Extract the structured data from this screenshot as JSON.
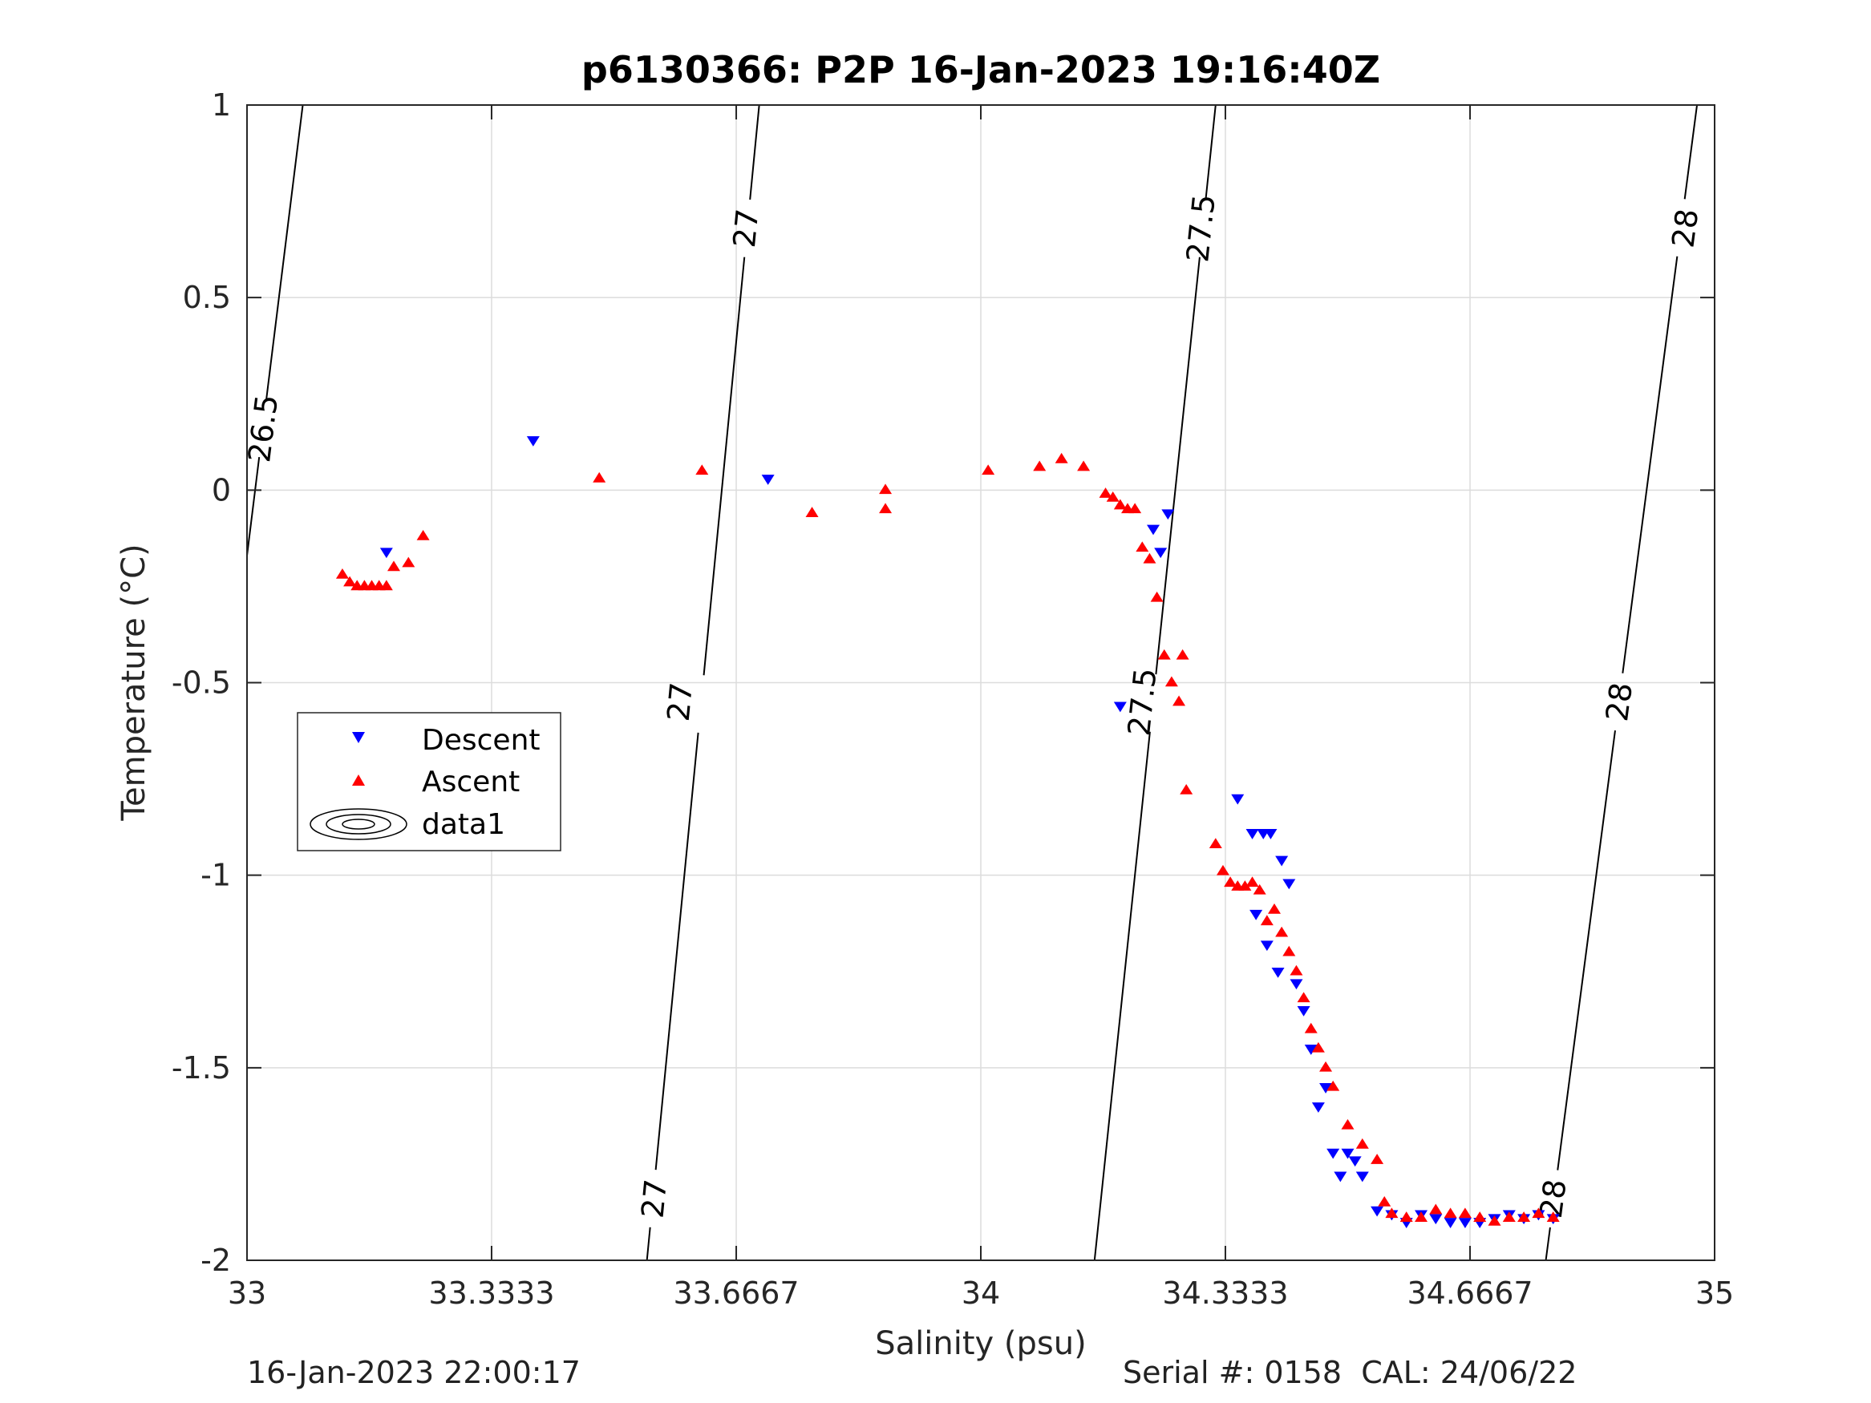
{
  "chart_data": {
    "type": "scatter",
    "title": "p6130366: P2P 16-Jan-2023 19:16:40Z",
    "xlabel": "Salinity (psu)",
    "ylabel": "Temperature (°C)",
    "xlim": [
      33,
      35
    ],
    "ylim": [
      -2,
      1
    ],
    "xticks": [
      33,
      33.3333,
      33.6667,
      34,
      34.3333,
      34.6667,
      35
    ],
    "xtick_labels": [
      "33",
      "33.3333",
      "33.6667",
      "34",
      "34.3333",
      "34.6667",
      "35"
    ],
    "yticks": [
      -2,
      -1.5,
      -1,
      -0.5,
      0,
      0.5,
      1
    ],
    "ytick_labels": [
      "-2",
      "-1.5",
      "-1",
      "-0.5",
      "0",
      "0.5",
      "1"
    ],
    "grid": true,
    "legend_position": "left-middle",
    "legend": [
      "Descent",
      "Ascent",
      "data1"
    ],
    "colors": {
      "descent": "#0000ff",
      "ascent": "#ff0000",
      "contour": "#000000"
    },
    "density_contours": [
      {
        "label": "26.5",
        "line": [
          [
            33.0,
            -0.17
          ],
          [
            33.076,
            1.0
          ]
        ],
        "label_positions": [
          [
            33.022,
            0.16
          ]
        ]
      },
      {
        "label": "27",
        "line": [
          [
            33.545,
            -2.0
          ],
          [
            33.698,
            1.0
          ]
        ],
        "label_positions": [
          [
            33.68,
            0.68
          ],
          [
            33.59,
            -0.55
          ],
          [
            33.555,
            -1.84
          ]
        ]
      },
      {
        "label": "27.5",
        "line": [
          [
            34.155,
            -2.0
          ],
          [
            34.32,
            1.0
          ]
        ],
        "label_positions": [
          [
            34.3,
            0.68
          ],
          [
            34.22,
            -0.55
          ]
        ]
      },
      {
        "label": "28",
        "line": [
          [
            34.77,
            -2.0
          ],
          [
            34.976,
            1.0
          ]
        ],
        "label_positions": [
          [
            34.96,
            0.68
          ],
          [
            34.87,
            -0.55
          ],
          [
            34.78,
            -1.84
          ]
        ]
      }
    ],
    "series": [
      {
        "name": "Descent",
        "marker": "triangle-down",
        "x": [
          33.19,
          33.39,
          33.71,
          34.19,
          34.235,
          34.245,
          34.255,
          34.35,
          34.37,
          34.375,
          34.385,
          34.39,
          34.395,
          34.405,
          34.41,
          34.42,
          34.43,
          34.44,
          34.45,
          34.46,
          34.47,
          34.48,
          34.49,
          34.5,
          34.51,
          34.52,
          34.54,
          34.56,
          34.58,
          34.6,
          34.62,
          34.64,
          34.66,
          34.68,
          34.7,
          34.72,
          34.74,
          34.76,
          34.78
        ],
        "y": [
          -0.16,
          0.13,
          0.03,
          -0.56,
          -0.1,
          -0.16,
          -0.06,
          -0.8,
          -0.89,
          -1.1,
          -0.89,
          -1.18,
          -0.89,
          -1.25,
          -0.96,
          -1.02,
          -1.28,
          -1.35,
          -1.45,
          -1.6,
          -1.55,
          -1.72,
          -1.78,
          -1.72,
          -1.74,
          -1.78,
          -1.87,
          -1.88,
          -1.9,
          -1.88,
          -1.89,
          -1.9,
          -1.9,
          -1.9,
          -1.89,
          -1.88,
          -1.89,
          -1.88,
          -1.89
        ]
      },
      {
        "name": "Ascent",
        "marker": "triangle-up",
        "x": [
          33.13,
          33.14,
          33.15,
          33.16,
          33.17,
          33.18,
          33.19,
          33.2,
          33.22,
          33.24,
          33.48,
          33.62,
          33.77,
          33.87,
          33.87,
          34.01,
          34.08,
          34.11,
          34.14,
          34.17,
          34.18,
          34.19,
          34.2,
          34.21,
          34.22,
          34.23,
          34.24,
          34.25,
          34.26,
          34.27,
          34.275,
          34.28,
          34.32,
          34.33,
          34.34,
          34.35,
          34.36,
          34.37,
          34.38,
          34.39,
          34.4,
          34.41,
          34.42,
          34.43,
          34.44,
          34.45,
          34.46,
          34.47,
          34.48,
          34.5,
          34.52,
          34.54,
          34.55,
          34.56,
          34.58,
          34.6,
          34.62,
          34.64,
          34.66,
          34.68,
          34.7,
          34.72,
          34.74,
          34.76,
          34.78
        ],
        "y": [
          -0.22,
          -0.24,
          -0.25,
          -0.25,
          -0.25,
          -0.25,
          -0.25,
          -0.2,
          -0.19,
          -0.12,
          0.03,
          0.05,
          -0.06,
          0.0,
          -0.05,
          0.05,
          0.06,
          0.08,
          0.06,
          -0.01,
          -0.02,
          -0.04,
          -0.05,
          -0.05,
          -0.15,
          -0.18,
          -0.28,
          -0.43,
          -0.5,
          -0.55,
          -0.43,
          -0.78,
          -0.92,
          -0.99,
          -1.02,
          -1.03,
          -1.03,
          -1.02,
          -1.04,
          -1.12,
          -1.09,
          -1.15,
          -1.2,
          -1.25,
          -1.32,
          -1.4,
          -1.45,
          -1.5,
          -1.55,
          -1.65,
          -1.7,
          -1.74,
          -1.85,
          -1.88,
          -1.89,
          -1.89,
          -1.87,
          -1.88,
          -1.88,
          -1.89,
          -1.9,
          -1.89,
          -1.89,
          -1.88,
          -1.89
        ]
      }
    ]
  },
  "footer": {
    "left": "16-Jan-2023 22:00:17",
    "right": "Serial #: 0158  CAL: 24/06/22"
  }
}
